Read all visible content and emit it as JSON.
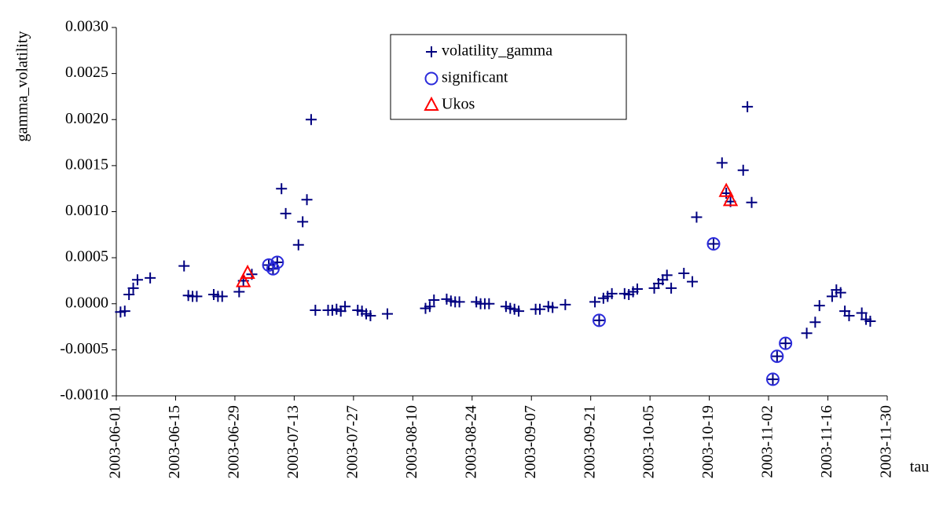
{
  "chart_data": {
    "type": "scatter",
    "x_label": "tau",
    "y_label": "gamma_volatility",
    "xlim": [
      "2003-06-01",
      "2003-11-30"
    ],
    "xticks": [
      "2003-06-01",
      "2003-06-15",
      "2003-06-29",
      "2003-07-13",
      "2003-07-27",
      "2003-08-10",
      "2003-08-24",
      "2003-09-07",
      "2003-09-21",
      "2003-10-05",
      "2003-10-19",
      "2003-11-02",
      "2003-11-16",
      "2003-11-30"
    ],
    "ylim": [
      -0.001,
      0.003
    ],
    "yticks": [
      {
        "value": -0.001,
        "label": "-0.0010"
      },
      {
        "value": -0.0005,
        "label": "-0.0005"
      },
      {
        "value": 0,
        "label": "0.0000"
      },
      {
        "value": 0.0005,
        "label": "0.0005"
      },
      {
        "value": 0.001,
        "label": "0.0010"
      },
      {
        "value": 0.0015,
        "label": "0.0015"
      },
      {
        "value": 0.002,
        "label": "0.0020"
      },
      {
        "value": 0.0025,
        "label": "0.0025"
      },
      {
        "value": 0.003,
        "label": "0.0030"
      }
    ],
    "grid": false,
    "legend": "top",
    "series": [
      {
        "name": "volatility_gamma",
        "color": "#000080",
        "marker": "plus",
        "x": [
          "2003-06-02",
          "2003-06-03",
          "2003-06-04",
          "2003-06-05",
          "2003-06-06",
          "2003-06-09",
          "2003-06-17",
          "2003-06-18",
          "2003-06-19",
          "2003-06-20",
          "2003-06-24",
          "2003-06-25",
          "2003-06-26",
          "2003-06-30",
          "2003-07-01",
          "2003-07-03",
          "2003-07-07",
          "2003-07-08",
          "2003-07-09",
          "2003-07-10",
          "2003-07-11",
          "2003-07-14",
          "2003-07-15",
          "2003-07-16",
          "2003-07-17",
          "2003-07-18",
          "2003-07-21",
          "2003-07-22",
          "2003-07-23",
          "2003-07-24",
          "2003-07-25",
          "2003-07-28",
          "2003-07-29",
          "2003-07-30",
          "2003-07-31",
          "2003-08-04",
          "2003-08-13",
          "2003-08-14",
          "2003-08-15",
          "2003-08-18",
          "2003-08-19",
          "2003-08-20",
          "2003-08-21",
          "2003-08-25",
          "2003-08-26",
          "2003-08-27",
          "2003-08-28",
          "2003-09-01",
          "2003-09-02",
          "2003-09-03",
          "2003-09-04",
          "2003-09-08",
          "2003-09-09",
          "2003-09-11",
          "2003-09-12",
          "2003-09-15",
          "2003-09-22",
          "2003-09-23",
          "2003-09-24",
          "2003-09-25",
          "2003-09-26",
          "2003-09-29",
          "2003-09-30",
          "2003-10-01",
          "2003-10-02",
          "2003-10-06",
          "2003-10-07",
          "2003-10-08",
          "2003-10-09",
          "2003-10-10",
          "2003-10-13",
          "2003-10-15",
          "2003-10-16",
          "2003-10-20",
          "2003-10-22",
          "2003-10-23",
          "2003-10-24",
          "2003-10-27",
          "2003-10-28",
          "2003-10-29",
          "2003-11-03",
          "2003-11-04",
          "2003-11-06",
          "2003-11-11",
          "2003-11-13",
          "2003-11-14",
          "2003-11-17",
          "2003-11-18",
          "2003-11-19",
          "2003-11-20",
          "2003-11-21",
          "2003-11-24",
          "2003-11-25",
          "2003-11-26"
        ],
        "values": [
          -9e-05,
          -8e-05,
          0.0001,
          0.00017,
          0.00026,
          0.00028,
          0.00041,
          9e-05,
          8e-05,
          8e-05,
          0.0001,
          8e-05,
          8e-05,
          0.00013,
          0.00025,
          0.00032,
          0.00042,
          0.00038,
          0.00045,
          0.00125,
          0.00098,
          0.00064,
          0.00089,
          0.00113,
          0.002,
          -7e-05,
          -7e-05,
          -7e-05,
          -6e-05,
          -8e-05,
          -3e-05,
          -7e-05,
          -8e-05,
          -0.00011,
          -0.00013,
          -0.00011,
          -5e-05,
          -3e-05,
          4e-05,
          5e-05,
          3e-05,
          2e-05,
          2e-05,
          2e-05,
          0,
          0,
          0,
          -3e-05,
          -5e-05,
          -6e-05,
          -8e-05,
          -6e-05,
          -6e-05,
          -3e-05,
          -4e-05,
          -1e-05,
          2e-05,
          -0.00018,
          6e-05,
          8e-05,
          0.00011,
          0.00011,
          0.0001,
          0.00013,
          0.00016,
          0.00017,
          0.00022,
          0.00026,
          0.00031,
          0.00017,
          0.00033,
          0.00024,
          0.00094,
          0.00065,
          0.00153,
          0.0012,
          0.00111,
          0.00145,
          0.00214,
          0.0011,
          -0.00082,
          -0.00057,
          -0.00043,
          -0.00032,
          -0.0002,
          -2e-05,
          8e-05,
          0.00015,
          0.00012,
          -8e-05,
          -0.00013,
          -0.0001,
          -0.00017,
          -0.00019
        ]
      },
      {
        "name": "significant",
        "color": "#2b2bdb",
        "marker": "circle",
        "x": [
          "2003-07-07",
          "2003-07-08",
          "2003-07-09",
          "2003-09-23",
          "2003-10-20",
          "2003-11-03",
          "2003-11-04",
          "2003-11-06"
        ],
        "values": [
          0.00042,
          0.00038,
          0.00045,
          -0.00018,
          0.00065,
          -0.00082,
          -0.00057,
          -0.00043
        ]
      },
      {
        "name": "Ukos",
        "color": "#ff0000",
        "marker": "triangle",
        "x": [
          "2003-07-01",
          "2003-07-02",
          "2003-10-23",
          "2003-10-24"
        ],
        "values": [
          0.00024,
          0.00033,
          0.00122,
          0.00112
        ]
      }
    ]
  }
}
